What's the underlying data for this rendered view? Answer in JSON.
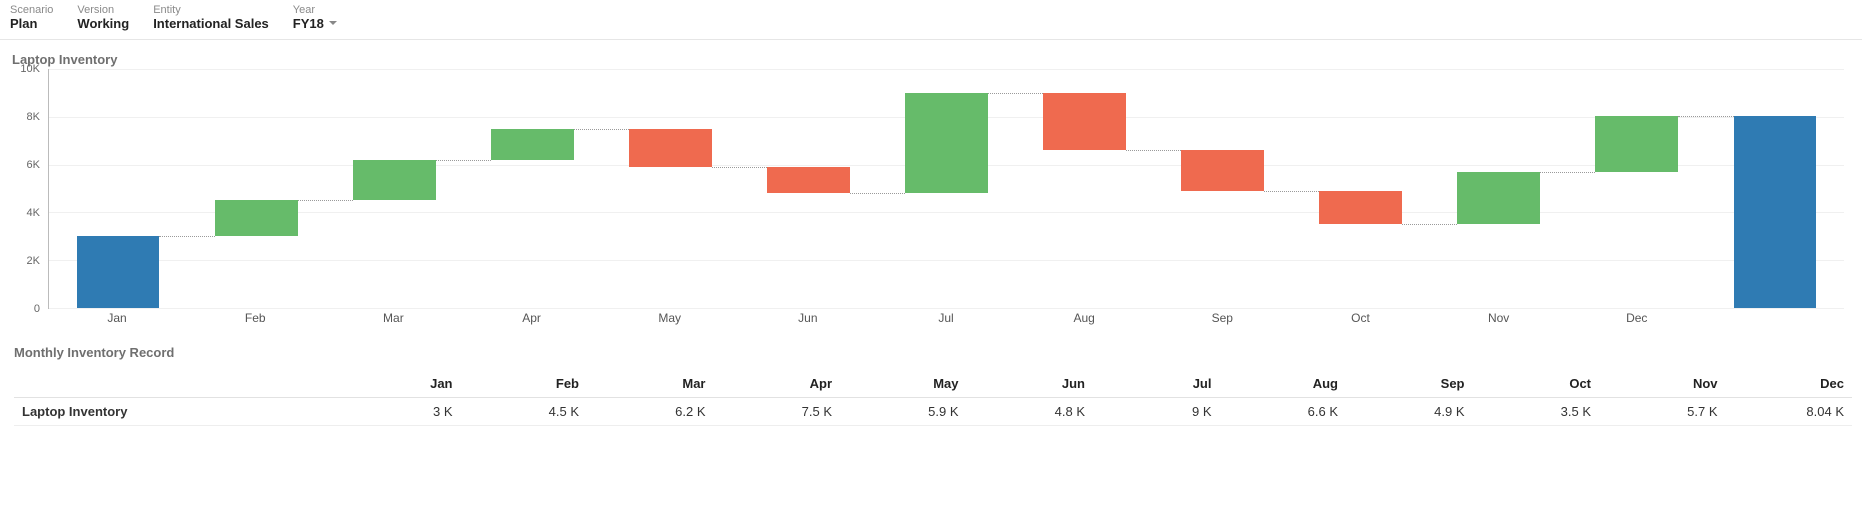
{
  "filters": {
    "scenario": {
      "label": "Scenario",
      "value": "Plan"
    },
    "version": {
      "label": "Version",
      "value": "Working"
    },
    "entity": {
      "label": "Entity",
      "value": "International Sales"
    },
    "year": {
      "label": "Year",
      "value": "FY18",
      "has_dropdown": true
    }
  },
  "chart": {
    "title": "Laptop Inventory",
    "type": "waterfall",
    "background_color": "#ffffff",
    "grid_color": "#f0f0f0",
    "axis_color": "#bbbbbb",
    "connector_color": "#9a9a9a",
    "label_fontsize": 12,
    "title_fontsize": 13,
    "ylim": [
      0,
      10000
    ],
    "ytick_step": 2000,
    "yticks": [
      "0",
      "2K",
      "4K",
      "6K",
      "8K",
      "10K"
    ],
    "categories": [
      "Jan",
      "Feb",
      "Mar",
      "Apr",
      "May",
      "Jun",
      "Jul",
      "Aug",
      "Sep",
      "Oct",
      "Nov",
      "Dec"
    ],
    "bar_width": 0.6,
    "colors": {
      "total": "#2f7bb3",
      "increase": "#66bb6a",
      "decrease": "#ef6a4f"
    },
    "final": {
      "label": "",
      "value": 8040,
      "type": "total"
    },
    "series": [
      {
        "label": "Jan",
        "start": 0,
        "end": 3000,
        "type": "total"
      },
      {
        "label": "Feb",
        "start": 3000,
        "end": 4500,
        "type": "increase"
      },
      {
        "label": "Mar",
        "start": 4500,
        "end": 6200,
        "type": "increase"
      },
      {
        "label": "Apr",
        "start": 6200,
        "end": 7500,
        "type": "increase"
      },
      {
        "label": "May",
        "start": 7500,
        "end": 5900,
        "type": "decrease"
      },
      {
        "label": "Jun",
        "start": 5900,
        "end": 4800,
        "type": "decrease"
      },
      {
        "label": "Jul",
        "start": 4800,
        "end": 9000,
        "type": "increase"
      },
      {
        "label": "Aug",
        "start": 9000,
        "end": 6600,
        "type": "decrease"
      },
      {
        "label": "Sep",
        "start": 6600,
        "end": 4900,
        "type": "decrease"
      },
      {
        "label": "Oct",
        "start": 4900,
        "end": 3500,
        "type": "decrease"
      },
      {
        "label": "Nov",
        "start": 3500,
        "end": 5700,
        "type": "increase"
      },
      {
        "label": "Dec",
        "start": 5700,
        "end": 8040,
        "type": "increase"
      }
    ]
  },
  "table": {
    "title": "Monthly Inventory Record",
    "row_label": "Laptop Inventory",
    "columns": [
      "Jan",
      "Feb",
      "Mar",
      "Apr",
      "May",
      "Jun",
      "Jul",
      "Aug",
      "Sep",
      "Oct",
      "Nov",
      "Dec"
    ],
    "values": [
      "3 K",
      "4.5 K",
      "6.2 K",
      "7.5 K",
      "5.9 K",
      "4.8 K",
      "9 K",
      "6.6 K",
      "4.9 K",
      "3.5 K",
      "5.7 K",
      "8.04 K"
    ]
  }
}
